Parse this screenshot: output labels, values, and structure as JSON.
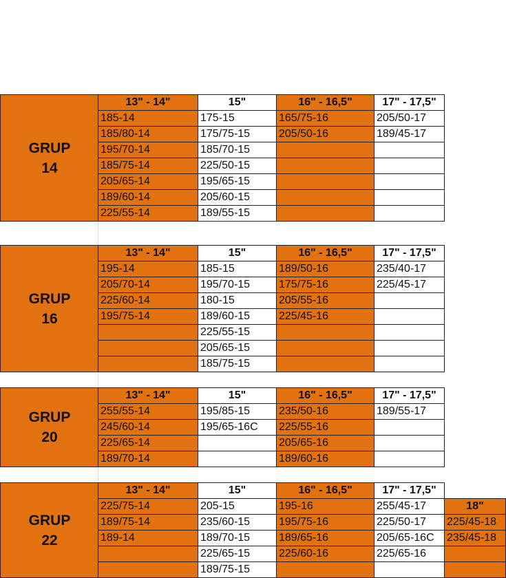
{
  "colors": {
    "orange": "#E2710F",
    "white": "#FFFFFF",
    "border": "#222222"
  },
  "groups": [
    {
      "label": "GRUP",
      "number": "14",
      "headers": [
        "13\" - 14\"",
        "15\"",
        "16\" - 16,5\"",
        "17\" - 17,5\""
      ],
      "rows": [
        [
          "185-14",
          "175-15",
          "165/75-16",
          "205/50-17"
        ],
        [
          "185/80-14",
          "175/75-15",
          "205/50-16",
          "189/45-17"
        ],
        [
          "195/70-14",
          "185/70-15",
          "",
          ""
        ],
        [
          "185/75-14",
          "225/50-15",
          "",
          ""
        ],
        [
          "205/65-14",
          "195/65-15",
          "",
          ""
        ],
        [
          "189/60-14",
          "205/60-15",
          "",
          ""
        ],
        [
          "225/55-14",
          "189/55-15",
          "",
          ""
        ]
      ]
    },
    {
      "label": "GRUP",
      "number": "16",
      "headers": [
        "13\" - 14\"",
        "15\"",
        "16\" - 16,5\"",
        "17\" - 17,5\""
      ],
      "rows": [
        [
          "195-14",
          "185-15",
          "189/50-16",
          "235/40-17"
        ],
        [
          "205/70-14",
          "195/70-15",
          "175/75-16",
          "225/45-17"
        ],
        [
          "225/60-14",
          "180-15",
          "205/55-16",
          ""
        ],
        [
          "195/75-14",
          "189/60-15",
          "225/45-16",
          ""
        ],
        [
          "",
          "225/55-15",
          "",
          ""
        ],
        [
          "",
          "205/65-15",
          "",
          ""
        ],
        [
          "",
          "185/75-15",
          "",
          ""
        ]
      ]
    },
    {
      "label": "GRUP",
      "number": "20",
      "headers": [
        "13\" - 14\"",
        "15\"",
        "16\" - 16,5\"",
        "17\" - 17,5\""
      ],
      "rows": [
        [
          "255/55-14",
          "195/85-15",
          "235/50-16",
          "189/55-17"
        ],
        [
          "245/60-14",
          "195/65-16C",
          "225/55-16",
          ""
        ],
        [
          "225/65-14",
          "",
          "205/65-16",
          ""
        ],
        [
          "189/70-14",
          "",
          "189/60-16",
          ""
        ]
      ]
    },
    {
      "label": "GRUP",
      "number": "22",
      "headers": [
        "13\" - 14\"",
        "15\"",
        "16\" - 16,5\"",
        "17\" - 17,5\""
      ],
      "rows": [
        [
          "225/75-14",
          "205-15",
          "195-16",
          "255/45-17"
        ],
        [
          "189/75-14",
          "235/60-15",
          "195/75-16",
          "225/50-17"
        ],
        [
          "189-14",
          "189/70-15",
          "189/65-16",
          "205/65-16C"
        ],
        [
          "",
          "225/65-15",
          "225/60-16",
          "225/65-16"
        ],
        [
          "",
          "189/75-15",
          "",
          ""
        ]
      ],
      "extra_column": {
        "header": "18\"",
        "values": [
          "225/45-18",
          "235/45-18",
          "",
          ""
        ]
      }
    }
  ]
}
